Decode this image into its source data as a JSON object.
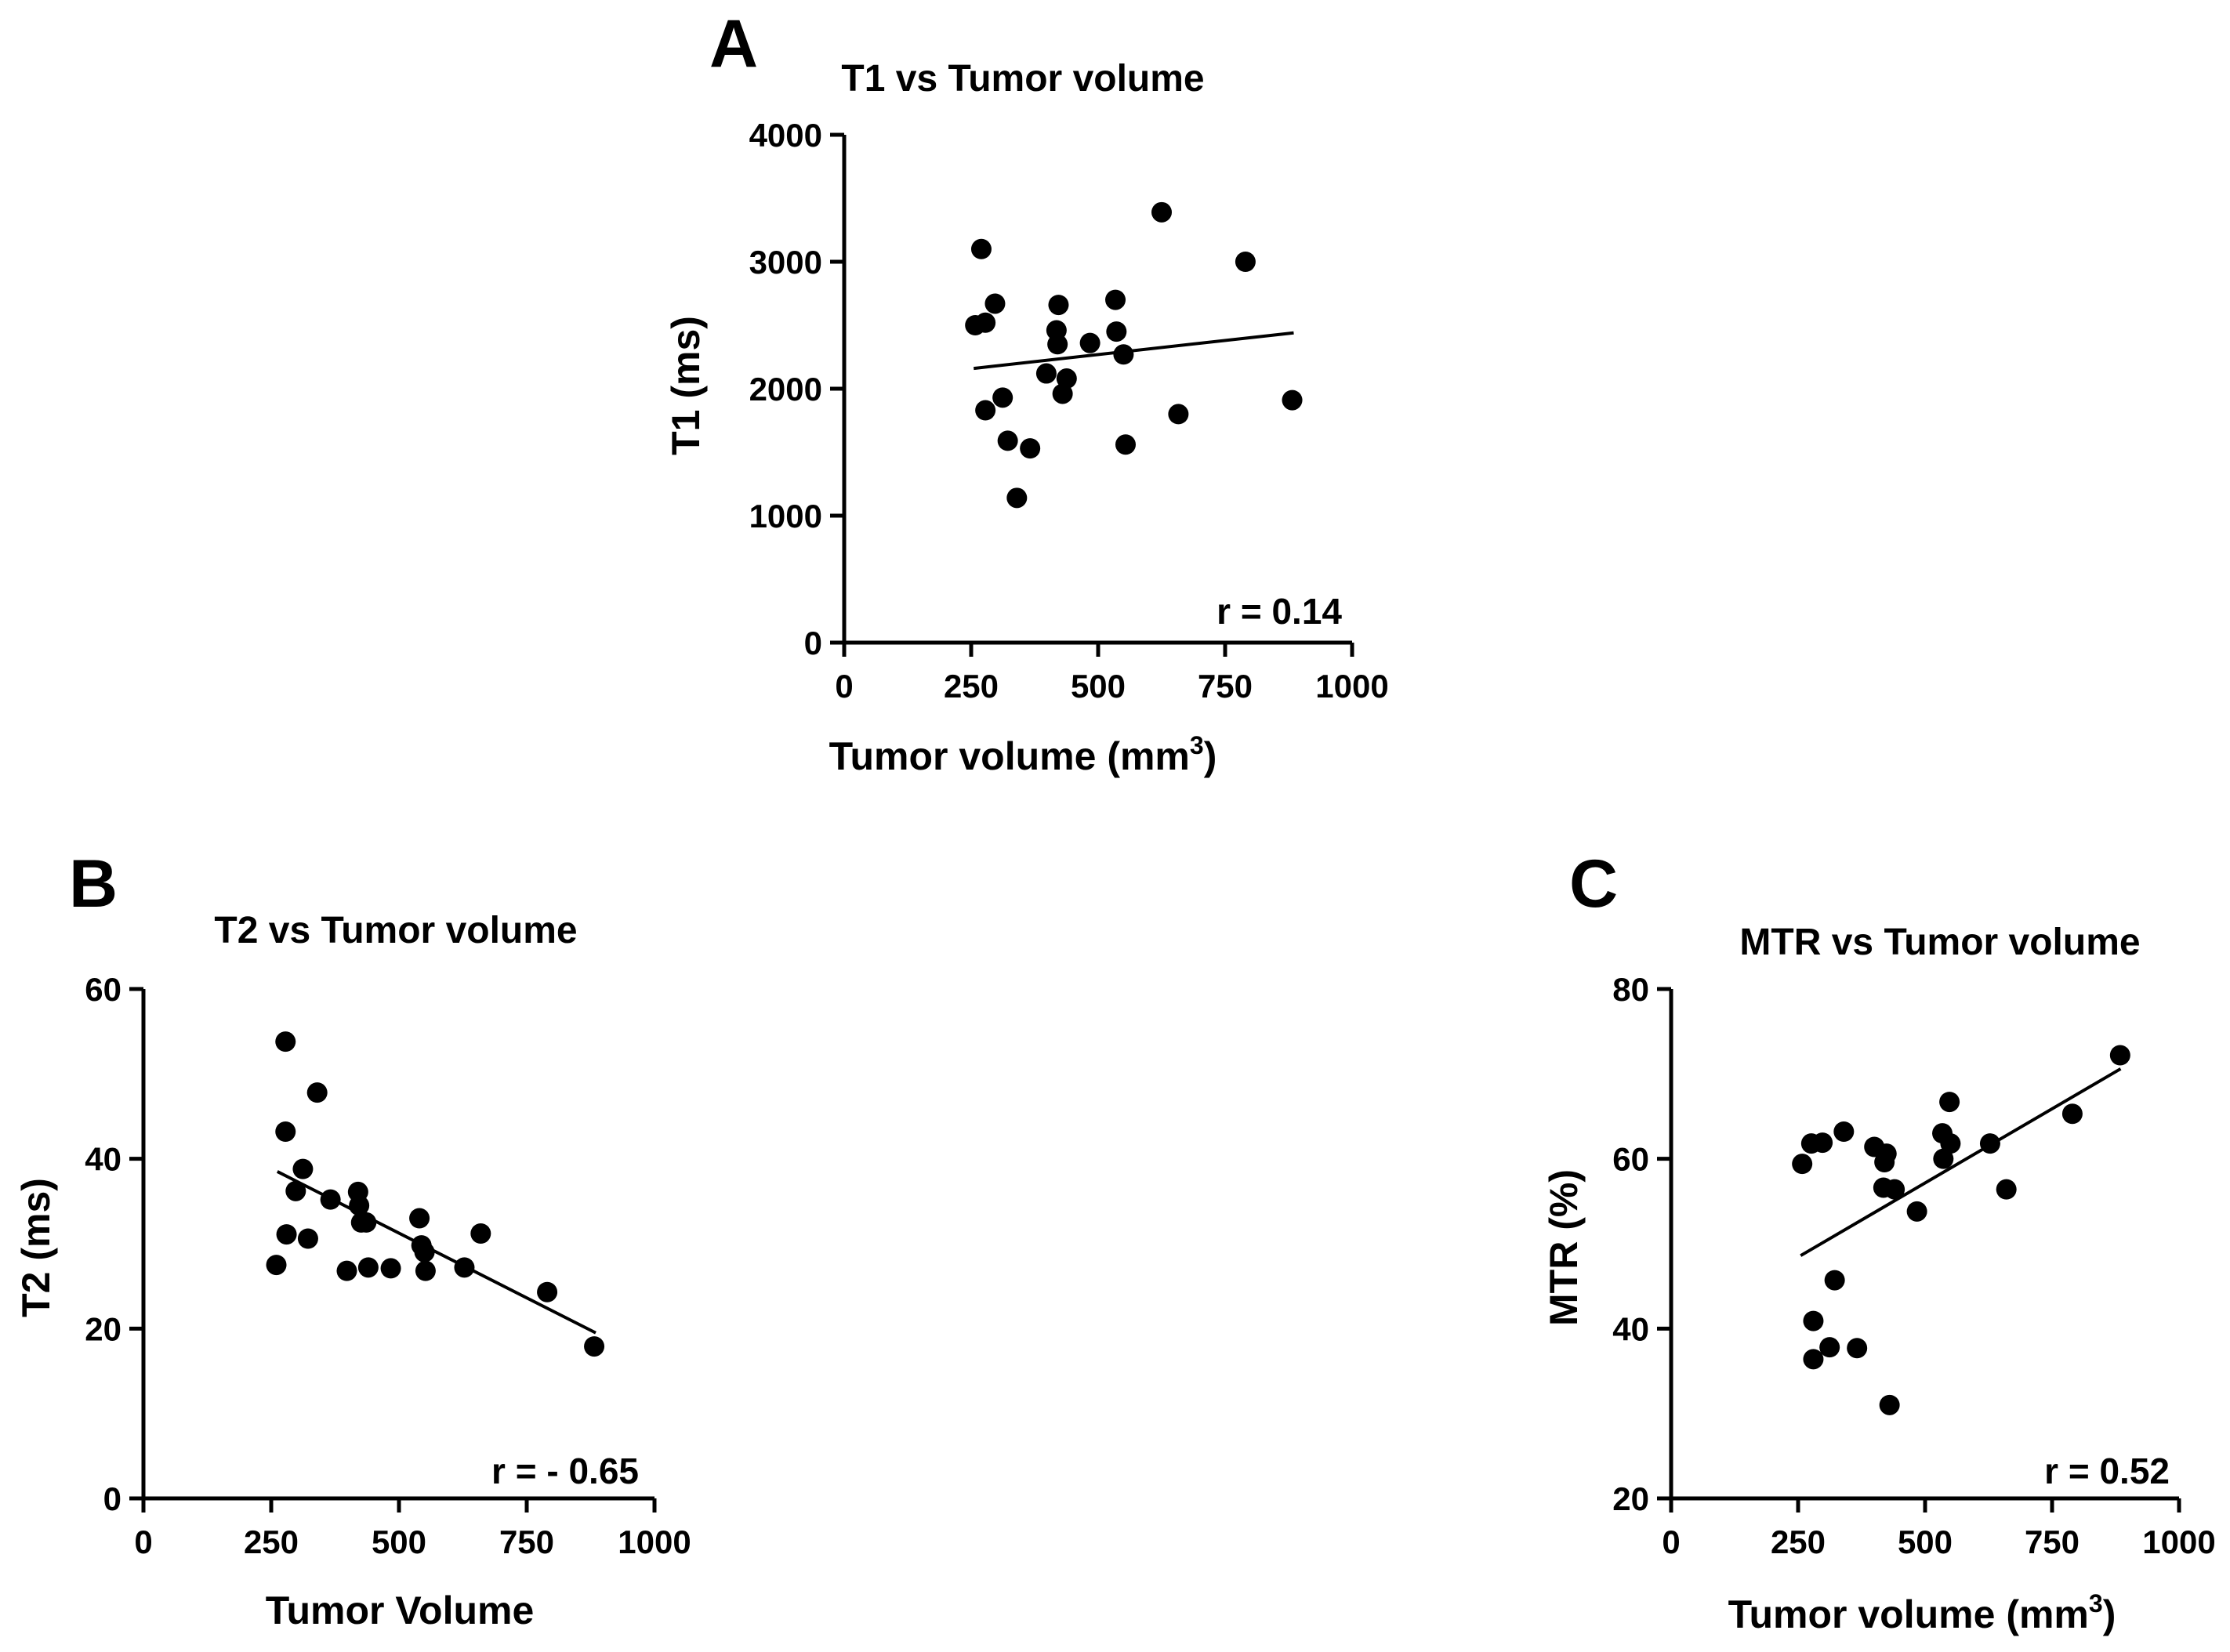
{
  "colors": {
    "foreground": "#000000",
    "background": "#ffffff"
  },
  "chart_data": [
    {
      "panel": "A",
      "type": "scatter",
      "title": "T1 vs Tumor volume",
      "xlabel": "Tumor volume (mm",
      "xlabel_sup": "3",
      "xlabel_close": ")",
      "ylabel": "T1 (ms)",
      "xlim": [
        0,
        1000
      ],
      "ylim": [
        0,
        4000
      ],
      "xticks": [
        0,
        250,
        500,
        750,
        1000
      ],
      "yticks": [
        0,
        1000,
        2000,
        3000,
        4000
      ],
      "r_label": "r = 0.14",
      "fit_line": {
        "x": [
          255,
          885
        ],
        "y": [
          2160,
          2440
        ]
      },
      "points": [
        [
          258,
          2500
        ],
        [
          270,
          3100
        ],
        [
          278,
          2520
        ],
        [
          278,
          1830
        ],
        [
          297,
          2670
        ],
        [
          312,
          1930
        ],
        [
          322,
          1590
        ],
        [
          340,
          1140
        ],
        [
          366,
          1530
        ],
        [
          398,
          2120
        ],
        [
          418,
          2460
        ],
        [
          420,
          2350
        ],
        [
          422,
          2660
        ],
        [
          430,
          1960
        ],
        [
          438,
          2080
        ],
        [
          484,
          2360
        ],
        [
          534,
          2700
        ],
        [
          536,
          2450
        ],
        [
          550,
          2270
        ],
        [
          554,
          1560
        ],
        [
          625,
          3390
        ],
        [
          658,
          1800
        ],
        [
          790,
          3000
        ],
        [
          882,
          1910
        ]
      ]
    },
    {
      "panel": "B",
      "type": "scatter",
      "title": "T2 vs Tumor volume",
      "xlabel": "Tumor Volume",
      "xlabel_sup": "",
      "xlabel_close": "",
      "ylabel": "T2 (ms)",
      "xlim": [
        0,
        1000
      ],
      "ylim": [
        0,
        60
      ],
      "xticks": [
        0,
        250,
        500,
        750,
        1000
      ],
      "yticks": [
        0,
        20,
        40,
        60
      ],
      "r_label": "r = - 0.65",
      "fit_line": {
        "x": [
          262,
          885
        ],
        "y": [
          38.5,
          19.5
        ]
      },
      "points": [
        [
          260,
          27.5
        ],
        [
          278,
          53.8
        ],
        [
          278,
          43.2
        ],
        [
          280,
          31.1
        ],
        [
          298,
          36.2
        ],
        [
          312,
          38.8
        ],
        [
          322,
          30.6
        ],
        [
          340,
          47.8
        ],
        [
          366,
          35.2
        ],
        [
          398,
          26.8
        ],
        [
          420,
          36.1
        ],
        [
          422,
          34.5
        ],
        [
          426,
          32.5
        ],
        [
          436,
          32.5
        ],
        [
          440,
          27.2
        ],
        [
          484,
          27.1
        ],
        [
          540,
          33.0
        ],
        [
          544,
          29.8
        ],
        [
          550,
          29.0
        ],
        [
          552,
          26.8
        ],
        [
          628,
          27.2
        ],
        [
          660,
          31.2
        ],
        [
          790,
          24.3
        ],
        [
          882,
          17.9
        ]
      ]
    },
    {
      "panel": "C",
      "type": "scatter",
      "title": "MTR vs Tumor volume",
      "xlabel": "Tumor volume (mm",
      "xlabel_sup": "3",
      "xlabel_close": ")",
      "ylabel": "MTR (%)",
      "xlim": [
        0,
        1000
      ],
      "ylim": [
        20,
        80
      ],
      "xticks": [
        0,
        250,
        500,
        750,
        1000
      ],
      "yticks": [
        20,
        40,
        60,
        80
      ],
      "r_label": "r = 0.52",
      "fit_line": {
        "x": [
          255,
          885
        ],
        "y": [
          48.6,
          70.6
        ]
      },
      "points": [
        [
          258,
          59.4
        ],
        [
          276,
          61.8
        ],
        [
          280,
          40.9
        ],
        [
          280,
          36.4
        ],
        [
          298,
          61.9
        ],
        [
          312,
          37.8
        ],
        [
          322,
          45.7
        ],
        [
          340,
          63.2
        ],
        [
          366,
          37.7
        ],
        [
          400,
          61.4
        ],
        [
          418,
          56.6
        ],
        [
          420,
          59.6
        ],
        [
          424,
          60.6
        ],
        [
          430,
          31.0
        ],
        [
          440,
          56.4
        ],
        [
          484,
          53.8
        ],
        [
          534,
          63.0
        ],
        [
          536,
          60.0
        ],
        [
          548,
          66.7
        ],
        [
          550,
          61.8
        ],
        [
          628,
          61.8
        ],
        [
          660,
          56.4
        ],
        [
          790,
          65.3
        ],
        [
          884,
          72.2
        ]
      ]
    }
  ]
}
